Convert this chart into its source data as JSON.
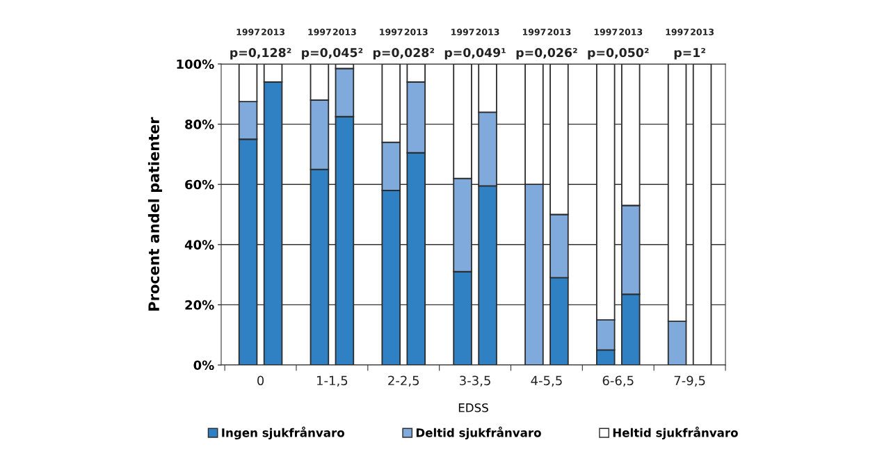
{
  "chart_data": {
    "type": "bar",
    "stacked": true,
    "categories": [
      "1997",
      "2013",
      "1997",
      "2013",
      "1997",
      "2013",
      "1997",
      "2013",
      "1997",
      "2013",
      "1997",
      "2013",
      "1997",
      "2013"
    ],
    "series": [
      {
        "name": "Ingen sjukfrånvaro",
        "color": "#3080c4",
        "values": [
          75,
          94,
          65,
          82.5,
          58,
          70.5,
          31,
          59.5,
          0,
          29,
          5,
          23.5,
          0,
          0
        ]
      },
      {
        "name": "Deltid sjukfrånvaro",
        "color": "#80aadc",
        "values": [
          12.5,
          0,
          23,
          16,
          16,
          23.5,
          31,
          24.5,
          60,
          21,
          10,
          29.5,
          14.5,
          0
        ]
      },
      {
        "name": "Heltid sjukfrånvaro",
        "color": "#ffffff",
        "values": [
          12.5,
          6,
          12,
          1.5,
          26,
          6,
          38,
          16,
          40,
          50,
          85,
          47,
          85.5,
          100
        ]
      }
    ],
    "xlabel": "EDSS",
    "ylabel": "Procent andel patienter",
    "ylim": [
      0,
      100
    ],
    "yticks": [
      {
        "value": 0,
        "label": "0%"
      },
      {
        "value": 20,
        "label": "20%"
      },
      {
        "value": 40,
        "label": "40%"
      },
      {
        "value": 60,
        "label": "60%"
      },
      {
        "value": 80,
        "label": "80%"
      },
      {
        "value": 100,
        "label": "100%"
      }
    ],
    "annotations": [
      "p=0,128²",
      "p=0,045²",
      "p=0,028²",
      "p=0,049¹",
      "p=0,026²",
      "p=0,050²",
      "p=1²",
      "0",
      "1-1,5",
      "2-2,5",
      "3-3,5",
      "4-5,5",
      "6-6,5",
      "7-9,5"
    ],
    "grid": "y",
    "legend": "bottom"
  }
}
